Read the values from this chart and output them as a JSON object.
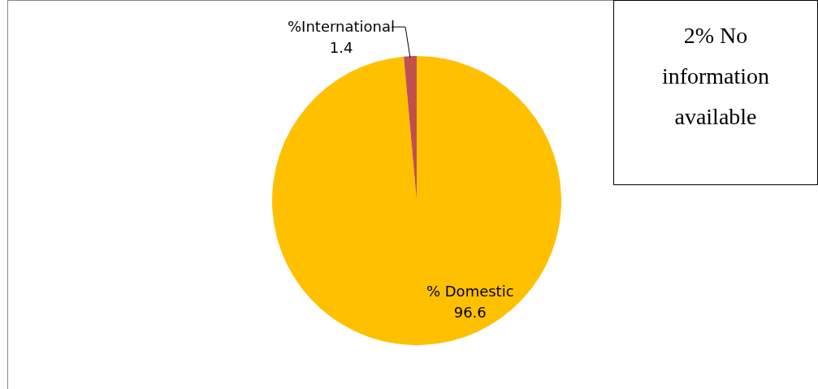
{
  "chart_data": {
    "type": "pie",
    "categories": [
      "% Domestic",
      "%International"
    ],
    "values": [
      96.6,
      1.4
    ],
    "colors": [
      "#ffc000",
      "#c0504d"
    ],
    "data_labels": true,
    "legend": false,
    "annotations": [
      "2% No information available"
    ]
  }
}
